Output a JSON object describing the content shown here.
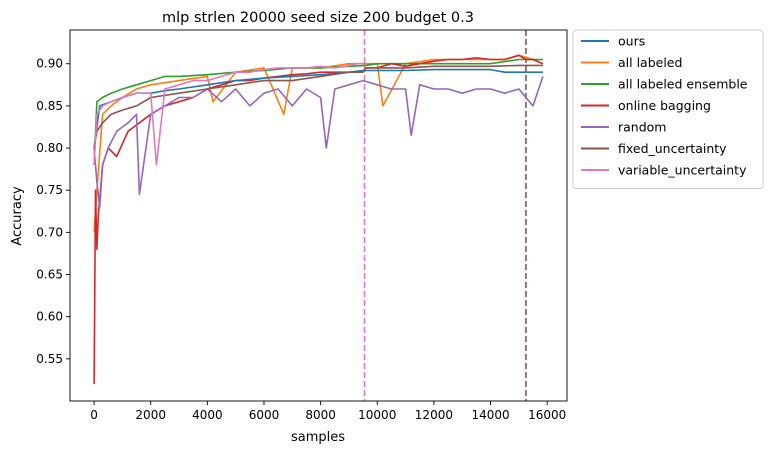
{
  "chart_data": {
    "type": "line",
    "title": "mlp strlen 20000 seed size 200 budget 0.3",
    "xlabel": "samples",
    "ylabel": "Accuracy",
    "xlim": [
      -850,
      16700
    ],
    "ylim": [
      0.5,
      0.94
    ],
    "xticks": [
      0,
      2000,
      4000,
      6000,
      8000,
      10000,
      12000,
      14000,
      16000
    ],
    "yticks": [
      0.55,
      0.6,
      0.65,
      0.7,
      0.75,
      0.8,
      0.85,
      0.9
    ],
    "grid": false,
    "legend_position": "outside-right-top",
    "vlines": [
      {
        "x": 9550,
        "color": "#e377c2",
        "style": "dashed"
      },
      {
        "x": 15250,
        "color": "#8c564b",
        "style": "dashed"
      }
    ],
    "series": [
      {
        "name": "ours",
        "color": "#1f77b4",
        "x": [
          0,
          200,
          600,
          1000,
          1500,
          2000,
          2500,
          3000,
          4000,
          5000,
          6000,
          7000,
          8000,
          9000,
          9500,
          10000,
          11000,
          12000,
          13000,
          14000,
          14500,
          15000,
          15250,
          15850
        ],
        "y": [
          0.8,
          0.85,
          0.855,
          0.86,
          0.865,
          0.865,
          0.868,
          0.87,
          0.875,
          0.88,
          0.883,
          0.885,
          0.887,
          0.89,
          0.892,
          0.892,
          0.892,
          0.893,
          0.893,
          0.893,
          0.89,
          0.89,
          0.89,
          0.89
        ]
      },
      {
        "name": "all labeled",
        "color": "#ff7f0e",
        "x": [
          0,
          100,
          300,
          600,
          1000,
          1500,
          2000,
          3000,
          4000,
          4200,
          5000,
          6000,
          6700,
          7000,
          8000,
          9000,
          9600,
          10000,
          10200,
          11000,
          12000,
          13000,
          14000,
          14500,
          15000,
          15500,
          15850
        ],
        "y": [
          0.7,
          0.75,
          0.84,
          0.85,
          0.86,
          0.87,
          0.875,
          0.88,
          0.885,
          0.855,
          0.89,
          0.895,
          0.84,
          0.895,
          0.895,
          0.9,
          0.9,
          0.9,
          0.85,
          0.9,
          0.905,
          0.905,
          0.905,
          0.905,
          0.91,
          0.905,
          0.9
        ]
      },
      {
        "name": "all labeled ensemble",
        "color": "#2ca02c",
        "x": [
          0,
          100,
          300,
          600,
          1000,
          1500,
          2000,
          2500,
          3000,
          4000,
          5000,
          6000,
          7000,
          8000,
          9000,
          9600,
          10000,
          11000,
          12000,
          13000,
          14000,
          15000,
          15850
        ],
        "y": [
          0.78,
          0.855,
          0.86,
          0.865,
          0.87,
          0.875,
          0.88,
          0.885,
          0.885,
          0.887,
          0.89,
          0.892,
          0.895,
          0.895,
          0.897,
          0.898,
          0.9,
          0.9,
          0.9,
          0.9,
          0.9,
          0.905,
          0.905
        ]
      },
      {
        "name": "online bagging",
        "color": "#d62728",
        "x": [
          0,
          50,
          100,
          150,
          300,
          500,
          800,
          1200,
          1600,
          2000,
          2500,
          3000,
          3500,
          4000,
          4500,
          5000,
          5500,
          6000,
          6500,
          7000,
          7500,
          8000,
          8500,
          9000,
          9500,
          9600,
          10000,
          10500,
          11000,
          11500,
          12000,
          12500,
          13000,
          13500,
          14000,
          14500,
          15000,
          15250,
          15500,
          15850
        ],
        "y": [
          0.52,
          0.75,
          0.68,
          0.72,
          0.78,
          0.8,
          0.79,
          0.82,
          0.83,
          0.84,
          0.85,
          0.855,
          0.86,
          0.87,
          0.875,
          0.88,
          0.88,
          0.883,
          0.885,
          0.887,
          0.888,
          0.89,
          0.89,
          0.89,
          0.89,
          0.895,
          0.895,
          0.9,
          0.897,
          0.9,
          0.903,
          0.905,
          0.905,
          0.907,
          0.905,
          0.905,
          0.91,
          0.905,
          0.905,
          0.9
        ]
      },
      {
        "name": "random",
        "color": "#9467bd",
        "x": [
          0,
          100,
          200,
          300,
          500,
          800,
          1200,
          1500,
          1600,
          2000,
          2500,
          3000,
          3500,
          4000,
          4500,
          5000,
          5500,
          6000,
          6500,
          7000,
          7500,
          8000,
          8200,
          8500,
          9000,
          9500,
          10000,
          10500,
          11000,
          11200,
          11500,
          12000,
          12500,
          13000,
          13500,
          14000,
          14500,
          15000,
          15250,
          15500,
          15850
        ],
        "y": [
          0.8,
          0.76,
          0.73,
          0.78,
          0.8,
          0.82,
          0.83,
          0.84,
          0.745,
          0.84,
          0.85,
          0.86,
          0.86,
          0.87,
          0.855,
          0.87,
          0.85,
          0.865,
          0.87,
          0.85,
          0.87,
          0.86,
          0.8,
          0.87,
          0.875,
          0.88,
          0.875,
          0.87,
          0.87,
          0.815,
          0.875,
          0.87,
          0.87,
          0.865,
          0.87,
          0.87,
          0.865,
          0.87,
          0.86,
          0.85,
          0.885
        ]
      },
      {
        "name": "fixed_uncertainty",
        "color": "#8c564b",
        "x": [
          0,
          100,
          300,
          600,
          1000,
          1500,
          2000,
          3000,
          4000,
          5000,
          6000,
          7000,
          8000,
          9000,
          9500,
          9600,
          10000,
          11000,
          12000,
          13000,
          14000,
          15000,
          15250,
          15850
        ],
        "y": [
          0.8,
          0.82,
          0.83,
          0.84,
          0.845,
          0.85,
          0.86,
          0.865,
          0.87,
          0.875,
          0.88,
          0.88,
          0.885,
          0.89,
          0.89,
          0.895,
          0.895,
          0.895,
          0.897,
          0.897,
          0.897,
          0.898,
          0.898,
          0.898
        ]
      },
      {
        "name": "variable_uncertainty",
        "color": "#e377c2",
        "x": [
          0,
          100,
          300,
          600,
          1000,
          1500,
          2000,
          2200,
          2500,
          3000,
          3500,
          4000,
          4500,
          5000,
          5500,
          6000,
          6500,
          7000,
          7500,
          8000,
          8500,
          9000,
          9300,
          9550
        ],
        "y": [
          0.78,
          0.84,
          0.85,
          0.855,
          0.86,
          0.865,
          0.865,
          0.78,
          0.87,
          0.875,
          0.88,
          0.88,
          0.885,
          0.89,
          0.89,
          0.893,
          0.895,
          0.895,
          0.895,
          0.897,
          0.895,
          0.898,
          0.9,
          0.9
        ]
      }
    ]
  }
}
